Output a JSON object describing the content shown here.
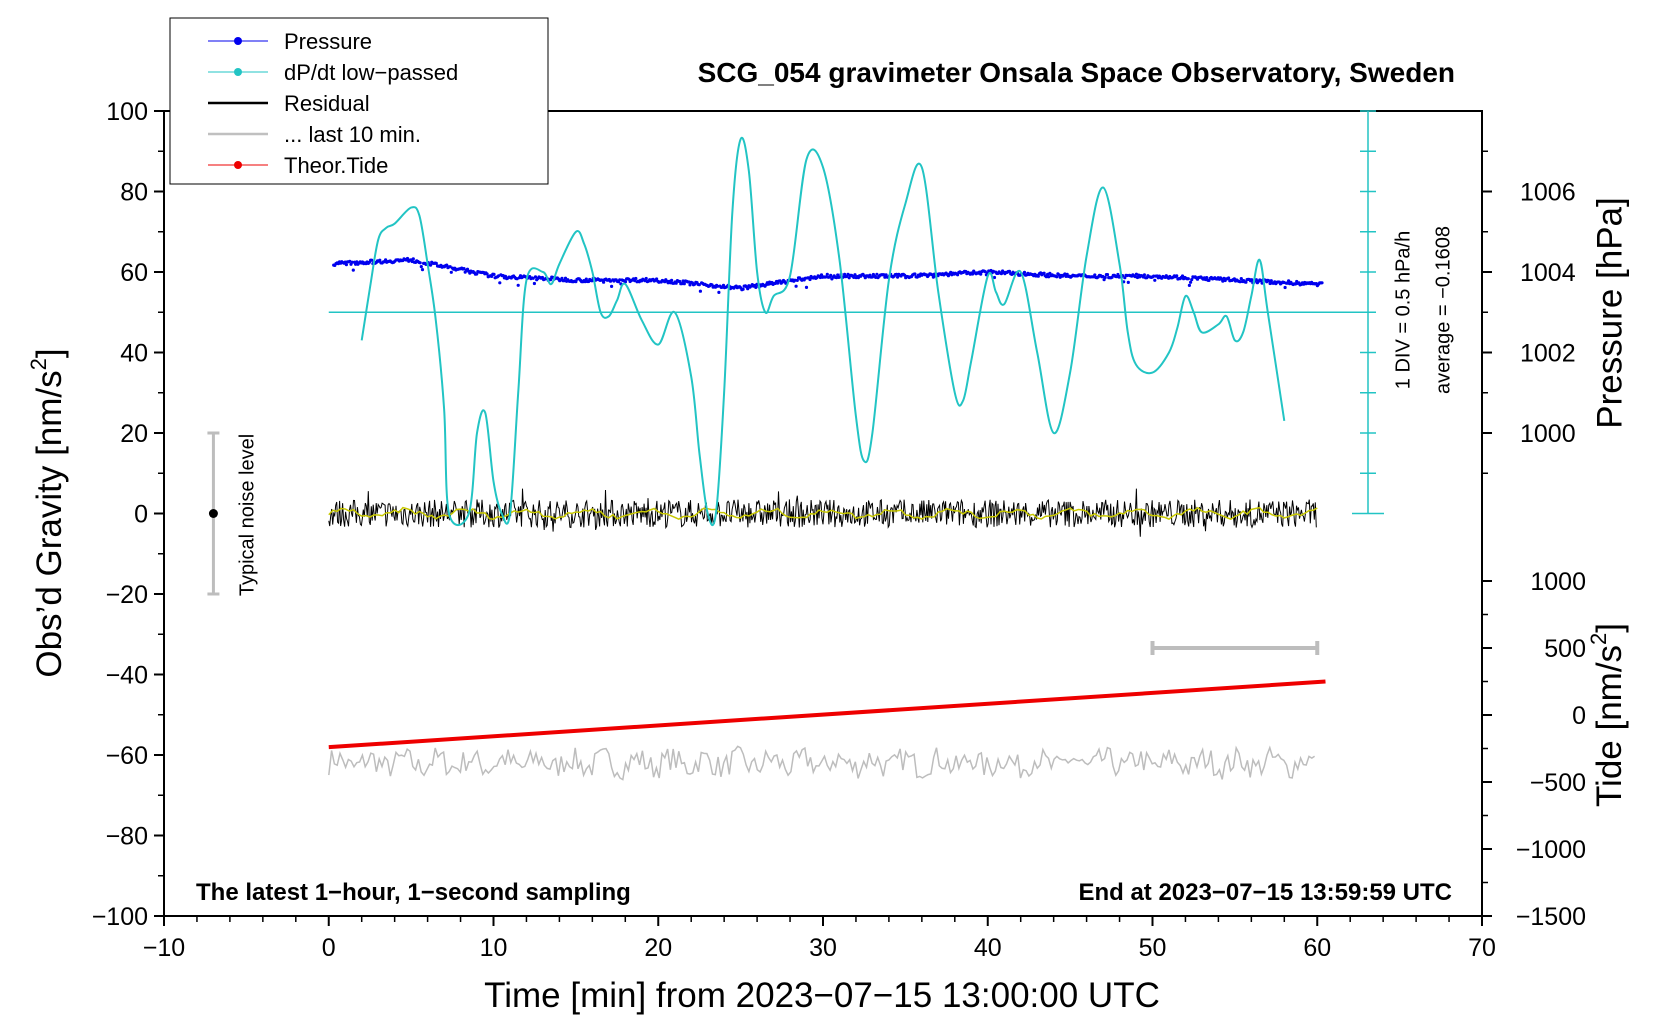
{
  "chart_data": {
    "type": "line",
    "title": "SCG_054 gravimeter Onsala Space Observatory, Sweden",
    "xlabel": "Time [min] from 2023−07−15 13:00:00 UTC",
    "ylabel_main": "Obs’d Gravity [nm/s",
    "ylabel_sup": "2",
    "ylabel_close": "]",
    "ylabel_pressure": "Pressure [hPa]",
    "ylabel_tide_main": "Tide [nm/s",
    "ylabel_tide_sup": "2",
    "ylabel_tide_close": "]",
    "xlim": [
      -10,
      70
    ],
    "ylim": [
      -100,
      100
    ],
    "pressure_lim": [
      998,
      1008
    ],
    "tide_lim": [
      -1500,
      1500
    ],
    "x_ticks": [
      "−10",
      "0",
      "10",
      "20",
      "30",
      "40",
      "50",
      "60",
      "70"
    ],
    "y_ticks": [
      "−100",
      "−80",
      "−60",
      "−40",
      "−20",
      "0",
      "20",
      "40",
      "60",
      "80",
      "100"
    ],
    "pressure_ticks": [
      "1000",
      "1002",
      "1004",
      "1006"
    ],
    "tide_ticks": [
      "−1500",
      "−1000",
      "−500",
      "0",
      "500",
      "1000"
    ],
    "legend": [
      {
        "label": "Pressure",
        "color": "#0000ee",
        "marker": true
      },
      {
        "label": "dP/dt low−passed",
        "color": "#22c4c4",
        "marker": true
      },
      {
        "label": "Residual",
        "color": "#000000",
        "marker": false
      },
      {
        "label": "... last 10 min.",
        "color": "#c0c0c0",
        "marker": false
      },
      {
        "label": "Theor.Tide",
        "color": "#ee0000",
        "marker": true
      }
    ],
    "annotations": {
      "noise": "Typical noise level",
      "div": "1 DIV = 0.5 hPa/h",
      "average": "average = −0.1608",
      "bottom_left": "The latest 1−hour, 1−second sampling",
      "bottom_right": "End at 2023−07−15 13:59:59 UTC"
    },
    "noise_bar": {
      "x": -7,
      "center": 0,
      "half_range": 20
    },
    "last10_bar": {
      "x_start": 50,
      "x_end": 60,
      "tide_level": 500
    },
    "dpdt_average_level_gravity": 50,
    "pressure_series": {
      "name": "Pressure",
      "x": [
        0,
        5,
        10,
        15,
        20,
        25,
        30,
        35,
        40,
        45,
        50,
        55,
        60
      ],
      "values": [
        1004.2,
        1004.3,
        1003.9,
        1003.8,
        1003.8,
        1003.6,
        1003.9,
        1003.9,
        1004.0,
        1003.9,
        1003.9,
        1003.8,
        1003.7
      ]
    },
    "dpdt_series": {
      "name": "dP/dt low−passed",
      "x": [
        2,
        2.5,
        3,
        3.5,
        4,
        5,
        5.5,
        6,
        6.5,
        7,
        7.3,
        8.5,
        9,
        9.5,
        10,
        10.5,
        11,
        11.5,
        12,
        13,
        13.5,
        14,
        15,
        15.5,
        16,
        16.5,
        17,
        17.5,
        18,
        19,
        20,
        21,
        22,
        22.5,
        23,
        23.5,
        24,
        24.5,
        25,
        25.5,
        26,
        26.5,
        27,
        28,
        29,
        30,
        31,
        32,
        32.5,
        33,
        34,
        35,
        36,
        37,
        38,
        38.5,
        39,
        40,
        40.5,
        41,
        42,
        43,
        44,
        45,
        46,
        47,
        48,
        48.5,
        49,
        50,
        51,
        51.5,
        52,
        52.5,
        53,
        54,
        54.5,
        55,
        55.5,
        56,
        56.5,
        57,
        58
      ],
      "values": [
        43,
        56,
        68,
        71,
        72,
        76,
        74,
        62,
        48,
        26,
        0,
        0,
        20,
        25,
        8,
        0,
        0,
        30,
        58,
        60,
        57,
        62,
        70,
        67,
        60,
        50,
        49,
        53,
        57,
        48,
        42,
        50,
        34,
        15,
        0,
        0,
        30,
        75,
        93,
        85,
        60,
        50,
        54,
        59,
        88,
        86,
        63,
        24,
        13,
        20,
        58,
        77,
        86,
        55,
        30,
        28,
        38,
        59,
        55,
        52,
        60,
        40,
        20,
        35,
        64,
        81,
        62,
        45,
        37,
        35,
        40,
        46,
        54,
        50,
        45,
        47,
        49,
        43,
        45,
        54,
        63,
        50,
        23
      ]
    },
    "residual_series": {
      "name": "Residual",
      "x": [
        0,
        60
      ],
      "values": [
        0,
        0
      ]
    },
    "last10_series": {
      "name": "... last 10 min.",
      "x": [
        0,
        60
      ],
      "values": [
        -62,
        -62
      ]
    },
    "tide_series": {
      "name": "Theor.Tide",
      "x": [
        0,
        60
      ],
      "values": [
        -240,
        250
      ]
    }
  }
}
